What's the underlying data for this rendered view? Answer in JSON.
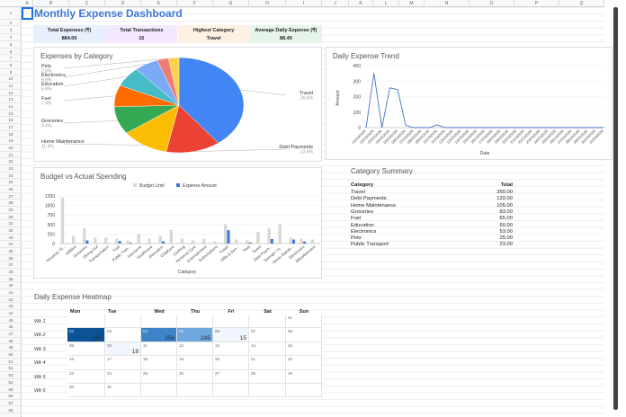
{
  "sheet": {
    "columns": [
      "A",
      "B",
      "C",
      "D",
      "E",
      "F",
      "G",
      "H",
      "I",
      "J",
      "K",
      "L",
      "M",
      "N",
      "O",
      "P",
      "Q"
    ],
    "rows": 58
  },
  "title": "Monthly Expense Dashboard",
  "kpis": [
    {
      "label": "Total Expenses (₹)",
      "value": "884.00",
      "color": "#e8f0fe"
    },
    {
      "label": "Total Transactions",
      "value": "15",
      "color": "#f3e8fd"
    },
    {
      "label": "Highest Category",
      "value": "Travel",
      "color": "#fef1e4"
    },
    {
      "label": "Average Daily Expense (₹)",
      "value": "88.40",
      "color": "#e6f4ea"
    }
  ],
  "chart_data": [
    {
      "type": "pie",
      "title": "Expenses by Category",
      "labels": [
        "Travel",
        "Debt Payments",
        "Home Maintenance",
        "Groceries",
        "Fuel",
        "Education",
        "Electronics",
        "Pets",
        "Public Transport"
      ],
      "values": [
        350,
        120,
        105,
        83,
        65,
        60,
        53,
        25,
        23
      ],
      "percent_labels": [
        "39.6%",
        "13.6%",
        "11.9%",
        "9.4%",
        "7.4%",
        "6.8%",
        "6.0%",
        "2.8%",
        ""
      ],
      "colors": [
        "#4285f4",
        "#ea4335",
        "#fbbc04",
        "#34a853",
        "#ff6d01",
        "#46bdc6",
        "#7baaf7",
        "#f07b72",
        "#fcd04f"
      ]
    },
    {
      "type": "line",
      "title": "Daily Expense Trend",
      "xlabel": "Date",
      "ylabel": "Amount",
      "ylim": [
        0,
        400
      ],
      "yticks": [
        "0",
        "100",
        "200",
        "300",
        "400"
      ],
      "x": [
        "01/03/2026",
        "02/03/2026",
        "03/03/2026",
        "04/03/2026",
        "05/03/2026",
        "06/03/2026",
        "07/03/2026",
        "08/03/2026",
        "09/03/2026",
        "10/03/2026",
        "11/03/2026",
        "12/03/2026",
        "13/03/2026",
        "14/03/2026",
        "15/03/2026",
        "16/03/2026",
        "17/03/2026",
        "18/03/2026",
        "19/03/2026",
        "20/03/2026",
        "21/03/2026",
        "22/03/2026",
        "23/03/2026",
        "24/03/2026",
        "25/03/2026",
        "26/03/2026",
        "27/03/2026",
        "28/03/2026",
        "29/03/2026",
        "30/03/2026",
        "31/03/2026"
      ],
      "values": [
        0,
        350,
        0,
        256,
        245,
        15,
        0,
        0,
        0,
        18,
        0,
        0,
        0,
        0,
        0,
        0,
        0,
        0,
        0,
        0,
        0,
        0,
        0,
        0,
        0,
        0,
        0,
        0,
        0,
        0,
        0
      ],
      "color": "#4472c4"
    },
    {
      "type": "bar",
      "title": "Budget vs Actual Spending",
      "xlabel": "Category",
      "ylim": [
        0,
        1250
      ],
      "yticks": [
        "0",
        "250",
        "500",
        "750",
        "1000",
        "1250"
      ],
      "categories": [
        "Housing / R...",
        "Utilities",
        "Groceries",
        "Dining Out",
        "Transportation",
        "Fuel",
        "Public Tran...",
        "Insurance",
        "Healthcare",
        "Education",
        "Childcare",
        "Clothing",
        "Personal Care",
        "Entertainment",
        "Subscriptions",
        "Travel",
        "Gifts & Don...",
        "Pets",
        "Taxes",
        "Debt Paym...",
        "Savings / In...",
        "Home Mainte...",
        "Electronics",
        "Miscellaneous"
      ],
      "series": [
        {
          "name": "Budget Limit",
          "color": "#d9d9d9",
          "values": [
            1200,
            200,
            400,
            150,
            150,
            120,
            80,
            250,
            120,
            200,
            350,
            120,
            80,
            120,
            50,
            500,
            100,
            80,
            300,
            400,
            500,
            150,
            120,
            100
          ]
        },
        {
          "name": "Expense Amount",
          "color": "#3c78d8",
          "values": [
            0,
            0,
            83,
            0,
            0,
            65,
            23,
            0,
            0,
            60,
            0,
            0,
            0,
            0,
            0,
            350,
            0,
            25,
            0,
            120,
            0,
            105,
            53,
            0
          ]
        }
      ]
    }
  ],
  "summary": {
    "title": "Category Summary",
    "headers": [
      "Category",
      "Total"
    ],
    "rows": [
      [
        "Travel",
        "350.00"
      ],
      [
        "Debt Payments",
        "120.00"
      ],
      [
        "Home Maintenance",
        "105.00"
      ],
      [
        "Groceries",
        "83.00"
      ],
      [
        "Fuel",
        "65.00"
      ],
      [
        "Education",
        "60.00"
      ],
      [
        "Electronics",
        "53.00"
      ],
      [
        "Pets",
        "25.00"
      ],
      [
        "Public Transport",
        "23.00"
      ]
    ]
  },
  "heatmap": {
    "title": "Daily Expense Heatmap",
    "days": [
      "Mon",
      "Tue",
      "Wed",
      "Thu",
      "Fri",
      "Sat",
      "Sun"
    ],
    "weeks": [
      "Wk 1",
      "Wk 2",
      "Wk 3",
      "Wk 4",
      "Wk 5",
      "Wk 6"
    ],
    "cells": [
      [
        "",
        "",
        "",
        "",
        "",
        "",
        "01"
      ],
      [
        "02",
        "03",
        "04",
        "05",
        "06",
        "07",
        "08"
      ],
      [
        "09",
        "10",
        "11",
        "12",
        "13",
        "14",
        "15"
      ],
      [
        "16",
        "17",
        "18",
        "19",
        "20",
        "21",
        "22"
      ],
      [
        "23",
        "24",
        "25",
        "26",
        "27",
        "28",
        "29"
      ],
      [
        "30",
        "31",
        "",
        "",
        "",
        "",
        ""
      ]
    ],
    "amounts": [
      [
        "",
        "",
        "",
        "",
        "",
        "",
        ""
      ],
      [
        "350",
        "",
        "256",
        "245",
        "15",
        "",
        ""
      ],
      [
        "",
        "18",
        "",
        "",
        "",
        "",
        ""
      ],
      [
        "",
        "",
        "",
        "",
        "",
        "",
        ""
      ],
      [
        "",
        "",
        "",
        "",
        "",
        "",
        ""
      ],
      [
        "",
        "",
        "",
        "",
        "",
        "",
        ""
      ]
    ]
  }
}
